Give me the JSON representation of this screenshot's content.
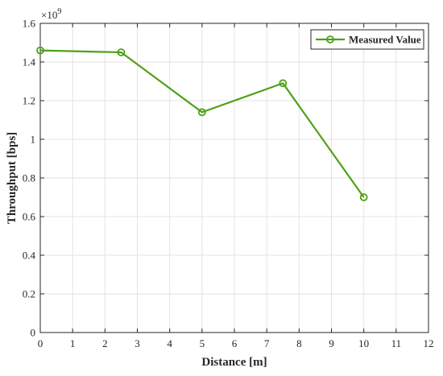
{
  "chart_data": {
    "type": "line",
    "xlabel": "Distance [m]",
    "ylabel": "Throughput [bps]",
    "y_multiplier_label": "×10",
    "y_multiplier_exponent": "9",
    "xlim": [
      0,
      12
    ],
    "ylim": [
      0,
      1.6
    ],
    "x_ticks": [
      0,
      1,
      2,
      3,
      4,
      5,
      6,
      7,
      8,
      9,
      10,
      11,
      12
    ],
    "y_ticks": [
      0,
      0.2,
      0.4,
      0.6,
      0.8,
      1,
      1.2,
      1.4,
      1.6
    ],
    "y_tick_labels": [
      "0",
      "0.2",
      "0.4",
      "0.6",
      "0.8",
      "1",
      "1.2",
      "1.4",
      "1.6"
    ],
    "grid": true,
    "legend_position": "top-right",
    "series": [
      {
        "name": "Measured Value",
        "color": "#4fa017",
        "marker": "circle",
        "x": [
          0,
          2.5,
          5,
          7.5,
          10
        ],
        "y": [
          1.46,
          1.45,
          1.14,
          1.29,
          0.7
        ]
      }
    ]
  }
}
